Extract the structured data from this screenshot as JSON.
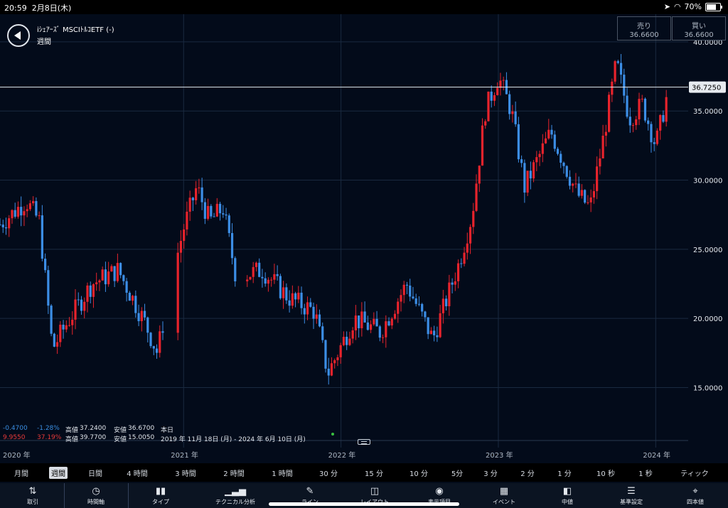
{
  "status_bar": {
    "time": "20:59",
    "date": "2月8日(木)",
    "battery": "70%",
    "battery_level": 0.7
  },
  "header": {
    "instrument": "iｼｪｱｰｽﾞ MSCIﾄﾙｺETF (-)",
    "timeframe": "週間",
    "sell_label": "売り",
    "sell_value": "36.6600",
    "buy_label": "買い",
    "buy_value": "36.6600"
  },
  "stats": {
    "change_1": "-0.4700",
    "change_pct_1": "-1.28%",
    "high_label": "高値",
    "high_1": "37.2400",
    "low_label": "安値",
    "low_1": "36.6700",
    "period_1": "本日",
    "change_2": "9.9550",
    "change_pct_2": "37.19%",
    "high_2": "39.7700",
    "low_2": "15.0050",
    "period_2": "2019 年 11月 18日 (月) - 2024 年 6月 10日 (月)"
  },
  "colors": {
    "up": "#e8232c",
    "down": "#3c8ee6",
    "background": "#030b1a",
    "grid": "#1a2a40"
  },
  "chart_data": {
    "type": "candlestick",
    "y_ticks": [
      "40.0000",
      "35.0000",
      "30.0000",
      "25.0000",
      "20.0000",
      "15.0000"
    ],
    "ylim": [
      12.3,
      42.0
    ],
    "x_ticks": [
      "2020 年",
      "2021 年",
      "2022 年",
      "2023 年",
      "2024 年"
    ],
    "current_price": "36.7250",
    "current_price_value": 36.725,
    "approx_close_path": [
      [
        "2019-11",
        26.8
      ],
      [
        "2020-01",
        28.5
      ],
      [
        "2020-02",
        27.0
      ],
      [
        "2020-03",
        17.8
      ],
      [
        "2020-04",
        19.5
      ],
      [
        "2020-06",
        22.5
      ],
      [
        "2020-08",
        23.5
      ],
      [
        "2020-10",
        19.8
      ],
      [
        "2020-11",
        17.5
      ],
      [
        "2020-12",
        22.5
      ],
      [
        "2021-01",
        26.5
      ],
      [
        "2021-02",
        29.5
      ],
      [
        "2021-03",
        27.0
      ],
      [
        "2021-04",
        28.0
      ],
      [
        "2021-05",
        23.0
      ],
      [
        "2021-07",
        23.5
      ],
      [
        "2021-09",
        21.5
      ],
      [
        "2021-11",
        20.5
      ],
      [
        "2021-12",
        16.0
      ],
      [
        "2022-02",
        20.0
      ],
      [
        "2022-04",
        19.0
      ],
      [
        "2022-06",
        22.5
      ],
      [
        "2022-08",
        18.5
      ],
      [
        "2022-10",
        24.0
      ],
      [
        "2022-11",
        27.5
      ],
      [
        "2022-12",
        35.0
      ],
      [
        "2023-01",
        37.5
      ],
      [
        "2023-02",
        35.0
      ],
      [
        "2023-03",
        29.5
      ],
      [
        "2023-05",
        33.5
      ],
      [
        "2023-07",
        29.0
      ],
      [
        "2023-08",
        28.0
      ],
      [
        "2023-09",
        33.0
      ],
      [
        "2023-10",
        38.5
      ],
      [
        "2023-11",
        34.5
      ],
      [
        "2023-12",
        35.5
      ],
      [
        "2024-01",
        32.5
      ],
      [
        "2024-02",
        36.7
      ]
    ]
  },
  "timeframes": [
    {
      "label": "月間",
      "active": false
    },
    {
      "label": "週間",
      "active": true
    },
    {
      "label": "日間",
      "active": false
    },
    {
      "label": "4 時間",
      "active": false
    },
    {
      "label": "3 時間",
      "active": false
    },
    {
      "label": "2 時間",
      "active": false
    },
    {
      "label": "1 時間",
      "active": false
    },
    {
      "label": "30 分",
      "active": false
    },
    {
      "label": "15 分",
      "active": false
    },
    {
      "label": "10 分",
      "active": false
    },
    {
      "label": "5分",
      "active": false
    },
    {
      "label": "3 分",
      "active": false
    },
    {
      "label": "2 分",
      "active": false
    },
    {
      "label": "1 分",
      "active": false
    },
    {
      "label": "10 秒",
      "active": false
    },
    {
      "label": "1 秒",
      "active": false
    },
    {
      "label": "ティック",
      "active": false
    }
  ],
  "toolbar": [
    {
      "label": "取引",
      "icon": "swap-arrows-icon"
    },
    {
      "label": "時間軸",
      "icon": "clock-icon"
    },
    {
      "label": "タイプ",
      "icon": "candle-icon"
    },
    {
      "label": "テクニカル分析",
      "icon": "bar-chart-icon"
    },
    {
      "label": "ライン",
      "icon": "pencil-icon"
    },
    {
      "label": "レイアウト",
      "icon": "layout-icon"
    },
    {
      "label": "表示項目",
      "icon": "eye-icon"
    },
    {
      "label": "イベント",
      "icon": "calendar-icon"
    },
    {
      "label": "中値",
      "icon": "mid-price-icon"
    },
    {
      "label": "基準設定",
      "icon": "settings-icon"
    },
    {
      "label": "四本値",
      "icon": "crosshair-icon"
    }
  ]
}
